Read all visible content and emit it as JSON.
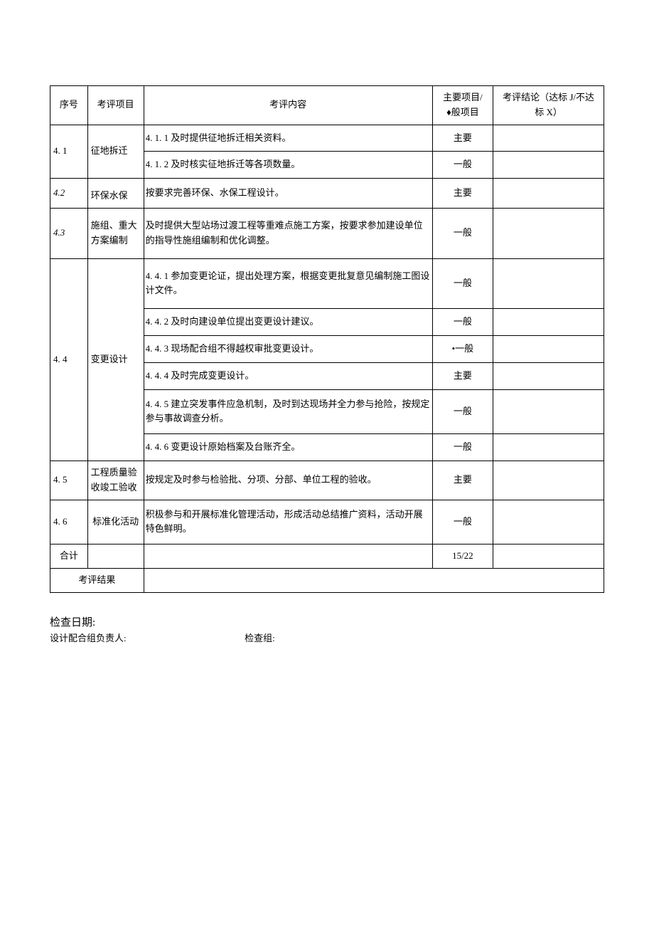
{
  "headers": {
    "seq": "序号",
    "item": "考评项目",
    "content": "考评内容",
    "type_line1": "主要项目/",
    "type_line2": "♦般项目",
    "result_line1": "考评结论（达标 J/不达",
    "result_line2": "标 X）"
  },
  "rows": {
    "r41": {
      "seq": "4. 1",
      "item": "征地拆迁",
      "c1": "4. 1. 1 及时提供征地拆迁相关资料。",
      "t1": "主要",
      "c2": "4. 1. 2 及时核实征地拆迁等各项数量。",
      "t2": "一般"
    },
    "r42": {
      "seq": "4.2",
      "item": "环保水保",
      "c1": "按要求完善环保、水保工程设计。",
      "t1": "主要"
    },
    "r43": {
      "seq": "4.3",
      "item": "施组、重大方案编制",
      "c1": "及时提供大型站场过渡工程等重难点施工方案，按要求参加建设单位的指导性施组编制和优化调整。",
      "t1": "一般"
    },
    "r44": {
      "seq": "4. 4",
      "item": "变更设计",
      "c1": "4. 4. 1 参加变更论证，提出处理方案，根据变更批复意见编制施工图设计文件。",
      "t1": "一般",
      "c2": "4. 4. 2 及时向建设单位提出变更设计建议。",
      "t2": "一般",
      "c3": "4. 4. 3 现场配合组不得越权审批变更设计。",
      "t3": "•一般",
      "c4": "4. 4. 4 及时完成变更设计。",
      "t4": "主要",
      "c5": "4. 4. 5 建立突发事件应急机制，及时到达现场并全力参与抢险，按规定参与事故调查分析。",
      "t5": "一般",
      "c6": "4. 4. 6 变更设计原始档案及台账齐全。",
      "t6": "一般"
    },
    "r45": {
      "seq": "4. 5",
      "item": "工程质量验收竣工验收",
      "c1": "按规定及时参与检验批、分项、分部、单位工程的验收。",
      "t1": "主要"
    },
    "r46": {
      "seq": "4. 6",
      "item": "标准化活动",
      "c1": "积极参与和开展标准化管理活动，形成活动总结推广资料，活动开展特色鲜明。",
      "t1": "一般"
    }
  },
  "total": {
    "label": "合计",
    "value": "15/22"
  },
  "result_label": "考评结果",
  "footer": {
    "date_label": "检查日期:",
    "leader_label": "设计配合组负责人:",
    "group_label": "检查组:"
  }
}
